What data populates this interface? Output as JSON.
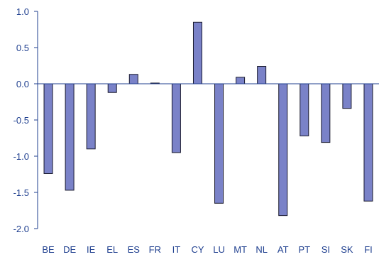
{
  "chart_data": {
    "type": "bar",
    "title": "",
    "xlabel": "",
    "ylabel": "",
    "categories": [
      "BE",
      "DE",
      "IE",
      "EL",
      "ES",
      "FR",
      "IT",
      "CY",
      "LU",
      "MT",
      "NL",
      "AT",
      "PT",
      "SI",
      "SK",
      "FI"
    ],
    "values": [
      -1.24,
      -1.47,
      -0.9,
      -0.12,
      0.13,
      0.01,
      -0.95,
      0.85,
      -1.65,
      0.09,
      0.24,
      -1.82,
      -0.72,
      -0.81,
      -0.34,
      -1.62
    ],
    "ylim": [
      -2.0,
      1.0
    ],
    "yticks": [
      1.0,
      0.5,
      0.0,
      -0.5,
      -1.0,
      -1.5,
      -2.0
    ],
    "ytick_labels": [
      "1.0",
      "0.5",
      "0.0",
      "-0.5",
      "-1.0",
      "-1.5",
      "-2.0"
    ],
    "grid": false,
    "legend": "none",
    "colors": {
      "bar_fill": "#7a82c8",
      "bar_stroke": "#1a1a2e",
      "axis": "#1f3f8f",
      "label": "#1f3f8f"
    }
  }
}
